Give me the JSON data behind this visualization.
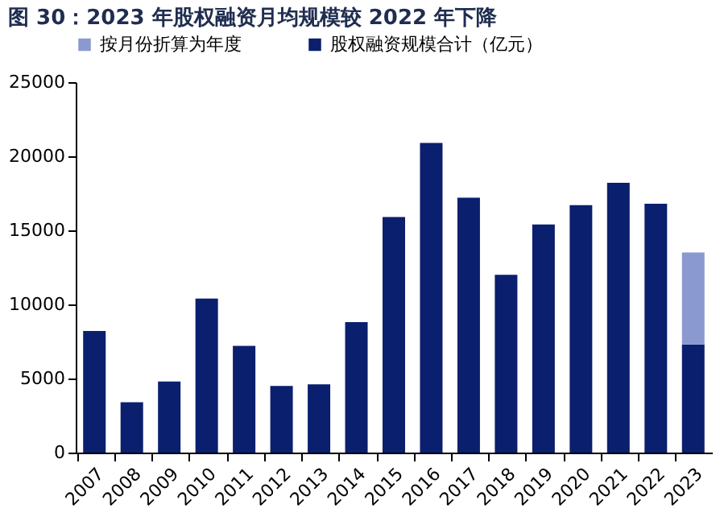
{
  "chart_data": {
    "type": "bar",
    "title": "图 30：2023 年股权融资月均规模较 2022 年下降",
    "categories": [
      "2007",
      "2008",
      "2009",
      "2010",
      "2011",
      "2012",
      "2013",
      "2014",
      "2015",
      "2016",
      "2017",
      "2018",
      "2019",
      "2020",
      "2021",
      "2022",
      "2023"
    ],
    "stacked": true,
    "series": [
      {
        "name": "股权融资规模合计（亿元）",
        "color": "#0a1f6e",
        "values": [
          8200,
          3400,
          4800,
          10400,
          7200,
          4500,
          4600,
          8800,
          15900,
          20900,
          17200,
          12000,
          15400,
          16700,
          18200,
          16800,
          7300
        ]
      },
      {
        "name": "按月份折算为年度",
        "color": "#8a9ad0",
        "values": [
          null,
          null,
          null,
          null,
          null,
          null,
          null,
          null,
          null,
          null,
          null,
          null,
          null,
          null,
          null,
          null,
          6200
        ]
      }
    ],
    "ylim": [
      0,
      25000
    ],
    "yticks": [
      0,
      5000,
      10000,
      15000,
      20000,
      25000
    ],
    "grid": false,
    "legend": "top"
  }
}
